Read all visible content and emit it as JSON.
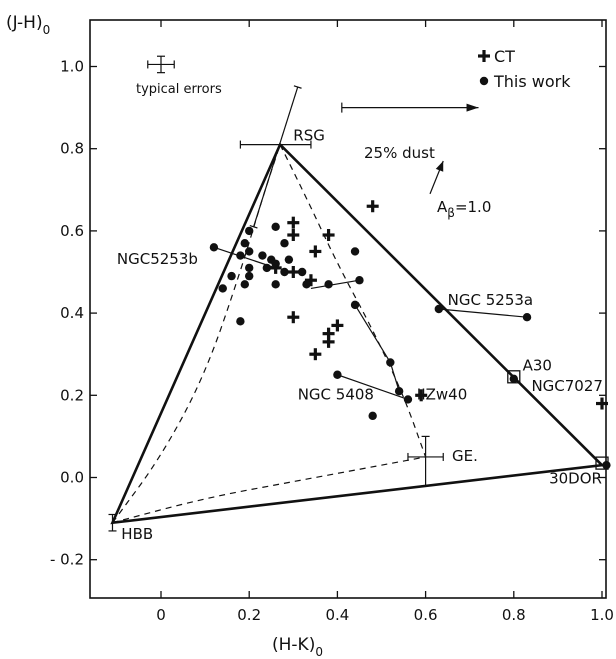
{
  "chart_data": {
    "type": "scatter",
    "xlabel": "(H-K)",
    "xlabel_sub": "0",
    "ylabel": "(J-H)",
    "ylabel_sub": "0",
    "xlim": [
      -0.2,
      1.02
    ],
    "ylim": [
      -0.2,
      1.08
    ],
    "x_ticks": [
      0,
      0.2,
      0.4,
      0.6,
      0.8,
      1.0
    ],
    "x_tick_labels": [
      "0",
      "0.2",
      "0.4",
      "0.6",
      "0.8",
      "1.0"
    ],
    "y_ticks": [
      -0.2,
      0.0,
      0.2,
      0.4,
      0.6,
      0.8,
      1.0
    ],
    "y_tick_labels": [
      "- 0.2",
      "0.0",
      "0.2",
      "0.4",
      "0.6",
      "0.8",
      "1.0"
    ],
    "grid": false,
    "legend_position": "top-right",
    "legend": [
      {
        "marker": "plus",
        "label": "CT"
      },
      {
        "marker": "dot",
        "label": "This work"
      }
    ],
    "typical_errors_label": "typical errors",
    "typical_errors": {
      "x": 0.0,
      "y": 1.005,
      "xerr": 0.03,
      "yerr": 0.02
    },
    "model_points": [
      {
        "label": "RSG",
        "x": 0.27,
        "y": 0.81,
        "xerr_lo": 0.09,
        "xerr_hi": 0.07,
        "yerr_lo": 0.0,
        "yerr_hi": 0.0
      },
      {
        "label": "GE",
        "x": 0.6,
        "y": 0.05,
        "xerr_lo": 0.04,
        "xerr_hi": 0.04,
        "yerr_lo": 0.07,
        "yerr_hi": 0.05
      },
      {
        "label": "HBB",
        "x": -0.11,
        "y": -0.11,
        "xerr_lo": 0.0,
        "xerr_hi": 0.0,
        "yerr_lo": 0.02,
        "yerr_hi": 0.02
      },
      {
        "label": "30DOR",
        "x": 1.0,
        "y": 0.03,
        "xerr_lo": 0.0,
        "xerr_hi": 0.0,
        "yerr_lo": 0.0,
        "yerr_hi": 0.0
      }
    ],
    "rsg_tilted_error": {
      "from": [
        0.21,
        0.61
      ],
      "to": [
        0.31,
        0.95
      ]
    },
    "solid_triangle": [
      [
        0.27,
        0.81
      ],
      [
        1.0,
        0.03
      ],
      [
        -0.11,
        -0.11
      ]
    ],
    "dashed_curves": [
      {
        "points": [
          [
            -0.11,
            -0.11
          ],
          [
            0.0,
            0.05
          ],
          [
            0.1,
            0.25
          ],
          [
            0.18,
            0.5
          ],
          [
            0.23,
            0.68
          ],
          [
            0.27,
            0.81
          ]
        ]
      },
      {
        "points": [
          [
            0.27,
            0.81
          ],
          [
            0.33,
            0.68
          ],
          [
            0.4,
            0.52
          ],
          [
            0.48,
            0.36
          ],
          [
            0.55,
            0.2
          ],
          [
            0.6,
            0.05
          ]
        ]
      },
      {
        "points": [
          [
            -0.11,
            -0.11
          ],
          [
            0.1,
            -0.05
          ],
          [
            0.3,
            -0.01
          ],
          [
            0.5,
            0.03
          ],
          [
            0.6,
            0.05
          ]
        ]
      }
    ],
    "series": [
      {
        "name": "CT",
        "marker": "plus",
        "points": [
          [
            0.48,
            0.66
          ],
          [
            0.3,
            0.62
          ],
          [
            0.3,
            0.59
          ],
          [
            0.38,
            0.59
          ],
          [
            0.35,
            0.55
          ],
          [
            0.26,
            0.51
          ],
          [
            0.3,
            0.5
          ],
          [
            0.34,
            0.48
          ],
          [
            0.3,
            0.39
          ],
          [
            0.4,
            0.37
          ],
          [
            0.38,
            0.35
          ],
          [
            0.38,
            0.33
          ],
          [
            0.35,
            0.3
          ],
          [
            0.59,
            0.2
          ],
          [
            1.0,
            0.18
          ]
        ]
      },
      {
        "name": "This work",
        "marker": "dot",
        "points": [
          [
            0.2,
            0.6
          ],
          [
            0.26,
            0.61
          ],
          [
            0.19,
            0.57
          ],
          [
            0.28,
            0.57
          ],
          [
            0.2,
            0.55
          ],
          [
            0.12,
            0.56
          ],
          [
            0.18,
            0.54
          ],
          [
            0.25,
            0.53
          ],
          [
            0.23,
            0.54
          ],
          [
            0.29,
            0.53
          ],
          [
            0.26,
            0.52
          ],
          [
            0.24,
            0.51
          ],
          [
            0.2,
            0.51
          ],
          [
            0.28,
            0.5
          ],
          [
            0.32,
            0.5
          ],
          [
            0.16,
            0.49
          ],
          [
            0.2,
            0.49
          ],
          [
            0.26,
            0.47
          ],
          [
            0.33,
            0.47
          ],
          [
            0.38,
            0.47
          ],
          [
            0.45,
            0.48
          ],
          [
            0.14,
            0.46
          ],
          [
            0.19,
            0.47
          ],
          [
            0.44,
            0.55
          ],
          [
            0.44,
            0.42
          ],
          [
            0.18,
            0.38
          ],
          [
            0.63,
            0.41
          ],
          [
            0.83,
            0.39
          ],
          [
            0.52,
            0.28
          ],
          [
            0.4,
            0.25
          ],
          [
            0.54,
            0.21
          ],
          [
            0.56,
            0.19
          ],
          [
            0.48,
            0.15
          ],
          [
            0.8,
            0.24
          ],
          [
            1.01,
            0.03
          ]
        ]
      }
    ],
    "connected_pairs": [
      [
        [
          0.12,
          0.56
        ],
        [
          0.26,
          0.51
        ]
      ],
      [
        [
          0.34,
          0.46
        ],
        [
          0.45,
          0.48
        ]
      ],
      [
        [
          0.63,
          0.41
        ],
        [
          0.83,
          0.39
        ]
      ],
      [
        [
          0.44,
          0.42
        ],
        [
          0.52,
          0.28
        ]
      ],
      [
        [
          0.52,
          0.28
        ],
        [
          0.54,
          0.21
        ]
      ],
      [
        [
          0.4,
          0.25
        ],
        [
          0.56,
          0.19
        ]
      ]
    ],
    "object_boxes": [
      {
        "x": 0.8,
        "y": 0.245
      },
      {
        "x": 1.0,
        "y": 0.035
      }
    ],
    "annotations": [
      {
        "text": "NGC5253b",
        "x": -0.1,
        "y": 0.52
      },
      {
        "text": "NGC  5253a",
        "x": 0.65,
        "y": 0.42
      },
      {
        "text": "A30",
        "x": 0.82,
        "y": 0.26
      },
      {
        "text": "NGC7027",
        "x": 0.84,
        "y": 0.21
      },
      {
        "text": "NGC  5408",
        "x": 0.31,
        "y": 0.19
      },
      {
        "text": "IIZw40",
        "x": 0.58,
        "y": 0.19
      },
      {
        "text": "GE.",
        "x": 0.66,
        "y": 0.04
      },
      {
        "text": "HBB",
        "x": -0.09,
        "y": -0.15
      },
      {
        "text": "30DOR",
        "x": 0.88,
        "y": -0.015
      },
      {
        "text": "RSG",
        "x": 0.3,
        "y": 0.82
      }
    ],
    "dust_label": "25% dust",
    "dust_arrow": {
      "from": [
        0.41,
        0.9
      ],
      "to": [
        0.72,
        0.9
      ]
    },
    "extinction_label": "A",
    "extinction_sub": "β",
    "extinction_value": "=1.0",
    "extinction_arrow": {
      "from": [
        0.61,
        0.69
      ],
      "to": [
        0.64,
        0.77
      ]
    }
  }
}
